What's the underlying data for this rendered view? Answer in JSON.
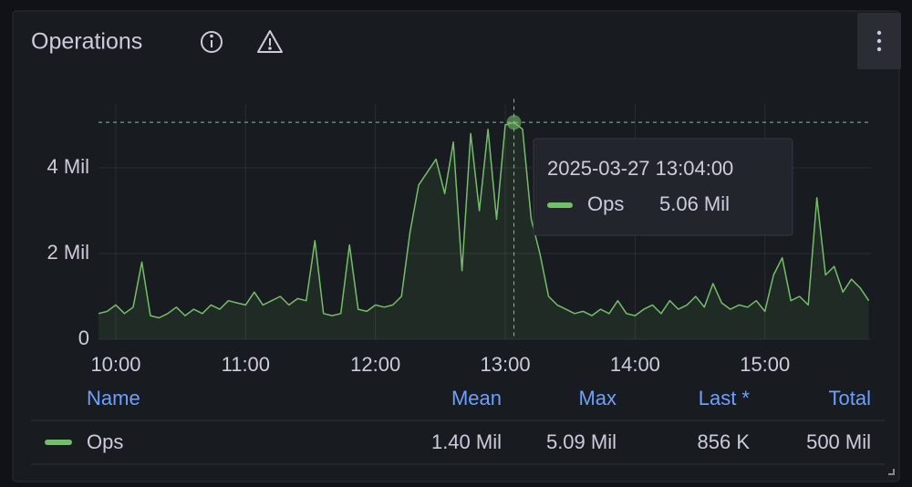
{
  "chart_data": {
    "type": "line",
    "title": "Operations",
    "x": [
      "09:52",
      "09:56",
      "10:00",
      "10:04",
      "10:08",
      "10:12",
      "10:16",
      "10:20",
      "10:24",
      "10:28",
      "10:32",
      "10:36",
      "10:40",
      "10:44",
      "10:48",
      "10:52",
      "10:56",
      "11:00",
      "11:04",
      "11:08",
      "11:12",
      "11:16",
      "11:20",
      "11:24",
      "11:28",
      "11:32",
      "11:36",
      "11:40",
      "11:44",
      "11:48",
      "11:52",
      "11:56",
      "12:00",
      "12:04",
      "12:08",
      "12:12",
      "12:16",
      "12:20",
      "12:24",
      "12:28",
      "12:32",
      "12:36",
      "12:40",
      "12:44",
      "12:48",
      "12:52",
      "12:56",
      "13:00",
      "13:04",
      "13:08",
      "13:12",
      "13:16",
      "13:20",
      "13:24",
      "13:28",
      "13:32",
      "13:36",
      "13:40",
      "13:44",
      "13:48",
      "13:52",
      "13:56",
      "14:00",
      "14:04",
      "14:08",
      "14:12",
      "14:16",
      "14:20",
      "14:24",
      "14:28",
      "14:32",
      "14:36",
      "14:40",
      "14:44",
      "14:48",
      "14:52",
      "14:56",
      "15:00",
      "15:04",
      "15:08",
      "15:12",
      "15:16",
      "15:20",
      "15:24",
      "15:28",
      "15:32",
      "15:36",
      "15:40",
      "15:44",
      "15:48"
    ],
    "series": [
      {
        "name": "Ops",
        "color": "#73bf69",
        "values": [
          0.6,
          0.65,
          0.8,
          0.6,
          0.75,
          1.8,
          0.55,
          0.5,
          0.6,
          0.75,
          0.55,
          0.7,
          0.6,
          0.8,
          0.7,
          0.9,
          0.85,
          0.8,
          1.1,
          0.8,
          0.9,
          1.0,
          0.8,
          0.95,
          0.9,
          2.3,
          0.6,
          0.55,
          0.6,
          2.2,
          0.7,
          0.65,
          0.8,
          0.75,
          0.8,
          1.0,
          2.5,
          3.6,
          3.9,
          4.2,
          3.4,
          4.6,
          1.6,
          4.8,
          3.0,
          4.9,
          2.8,
          5.0,
          5.06,
          4.9,
          2.8,
          2.0,
          1.0,
          0.8,
          0.7,
          0.6,
          0.65,
          0.55,
          0.7,
          0.6,
          0.9,
          0.6,
          0.55,
          0.7,
          0.8,
          0.6,
          0.9,
          0.7,
          0.8,
          1.0,
          0.75,
          1.3,
          0.85,
          0.7,
          0.8,
          0.75,
          0.9,
          0.65,
          1.5,
          1.9,
          0.9,
          1.0,
          0.8,
          3.3,
          1.5,
          1.7,
          1.1,
          1.4,
          1.2,
          0.9
        ]
      }
    ],
    "xlim": [
      "09:52",
      "15:49"
    ],
    "xticks": [
      "10:00",
      "11:00",
      "12:00",
      "13:00",
      "14:00",
      "15:00"
    ],
    "ylim": [
      0,
      5.5
    ],
    "yticks": [
      0,
      {
        "value": 2,
        "label": "2 Mil"
      },
      {
        "value": 4,
        "label": "4 Mil"
      }
    ],
    "grid": true,
    "tooltip": {
      "time": "2025-03-27 13:04:00",
      "value": 5.06,
      "value_label": "5.06 Mil"
    },
    "legend": {
      "columns": [
        "Name",
        "Mean",
        "Max",
        "Last *",
        "Total"
      ],
      "stats": [
        "1.40 Mil",
        "5.09 Mil",
        "856 K",
        "500 Mil"
      ]
    }
  }
}
